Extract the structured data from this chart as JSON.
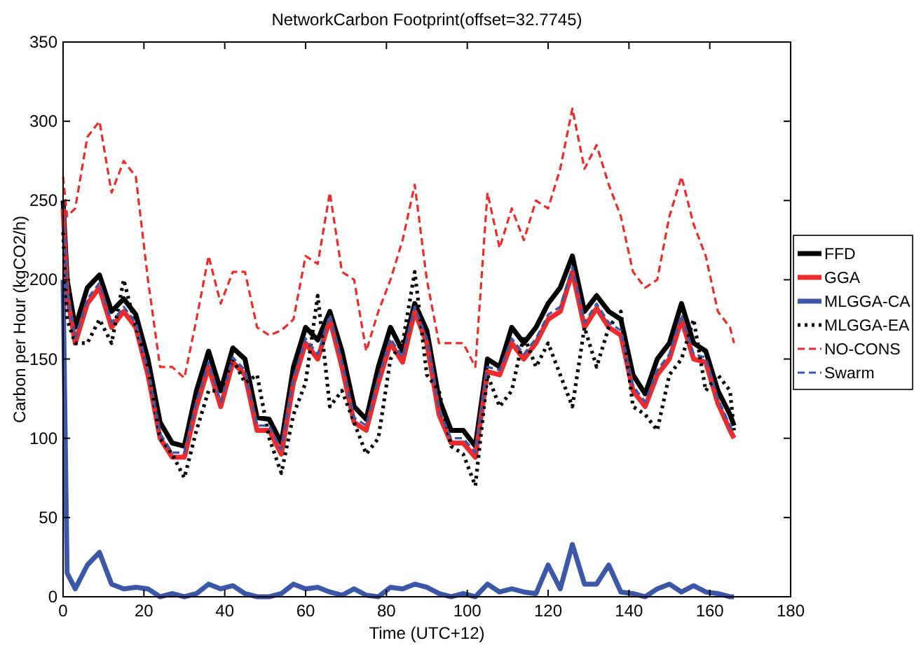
{
  "chart_data": {
    "type": "line",
    "title": "NetworkCarbon Footprint(offset=32.7745)",
    "xlabel": "Time (UTC+12)",
    "ylabel": "Carbon per Hour (kgCO2/h)",
    "x": [
      0,
      1,
      3,
      6,
      9,
      12,
      15,
      18,
      21,
      24,
      27,
      30,
      33,
      36,
      39,
      42,
      45,
      48,
      51,
      54,
      57,
      60,
      63,
      66,
      69,
      72,
      75,
      78,
      81,
      84,
      87,
      90,
      93,
      96,
      99,
      102,
      105,
      108,
      111,
      114,
      117,
      120,
      123,
      126,
      129,
      132,
      135,
      138,
      141,
      144,
      147,
      150,
      153,
      156,
      159,
      162,
      165,
      166
    ],
    "series": [
      {
        "name": "FFD",
        "color": "#000000",
        "line_style": "solid",
        "values": [
          250,
          200,
          170,
          195,
          203,
          180,
          188,
          178,
          150,
          110,
          97,
          95,
          130,
          155,
          130,
          157,
          150,
          113,
          112,
          97,
          145,
          170,
          162,
          180,
          155,
          120,
          112,
          145,
          170,
          155,
          185,
          168,
          125,
          105,
          105,
          95,
          150,
          145,
          170,
          160,
          170,
          185,
          195,
          215,
          180,
          190,
          180,
          175,
          140,
          128,
          150,
          160,
          185,
          160,
          155,
          130,
          115,
          108
        ]
      },
      {
        "name": "GGA",
        "color": "#ee2a2a",
        "line_style": "solid",
        "values": [
          245,
          190,
          160,
          185,
          195,
          170,
          180,
          170,
          140,
          100,
          88,
          88,
          120,
          145,
          120,
          148,
          140,
          105,
          105,
          90,
          135,
          160,
          150,
          175,
          145,
          110,
          105,
          135,
          160,
          148,
          180,
          160,
          115,
          97,
          97,
          88,
          142,
          140,
          160,
          150,
          160,
          175,
          180,
          205,
          170,
          182,
          170,
          165,
          130,
          120,
          140,
          150,
          175,
          150,
          148,
          122,
          105,
          100
        ]
      },
      {
        "name": "MLGGA-CA",
        "color": "#3a57a8",
        "line_style": "solid",
        "values": [
          200,
          15,
          5,
          20,
          28,
          8,
          5,
          6,
          5,
          0,
          2,
          0,
          2,
          8,
          5,
          7,
          2,
          0,
          0,
          2,
          8,
          5,
          6,
          3,
          1,
          5,
          1,
          0,
          6,
          5,
          8,
          6,
          2,
          0,
          2,
          0,
          8,
          3,
          5,
          3,
          2,
          20,
          5,
          33,
          8,
          8,
          20,
          3,
          2,
          0,
          5,
          8,
          3,
          7,
          3,
          2,
          0,
          0
        ]
      },
      {
        "name": "MLGGA-EA",
        "color": "#000000",
        "line_style": "dotted",
        "values": [
          230,
          175,
          160,
          160,
          175,
          160,
          200,
          170,
          145,
          100,
          90,
          75,
          105,
          130,
          130,
          150,
          135,
          140,
          100,
          78,
          115,
          135,
          190,
          120,
          130,
          110,
          90,
          100,
          150,
          160,
          205,
          140,
          130,
          95,
          90,
          70,
          140,
          120,
          130,
          165,
          145,
          160,
          140,
          120,
          170,
          145,
          170,
          180,
          120,
          115,
          105,
          140,
          150,
          175,
          130,
          140,
          130,
          105
        ]
      },
      {
        "name": "NO-CONS",
        "color": "#ee2a2a",
        "line_style": "dashed",
        "values": [
          265,
          240,
          245,
          290,
          300,
          255,
          275,
          265,
          200,
          145,
          145,
          138,
          175,
          215,
          185,
          205,
          205,
          170,
          165,
          168,
          175,
          215,
          210,
          255,
          205,
          200,
          155,
          180,
          200,
          225,
          260,
          200,
          160,
          160,
          160,
          145,
          255,
          220,
          245,
          225,
          250,
          245,
          270,
          308,
          270,
          285,
          260,
          240,
          205,
          195,
          200,
          240,
          265,
          235,
          215,
          180,
          170,
          160
        ]
      },
      {
        "name": "Swarm",
        "color": "#3a57a8",
        "line_style": "dashed",
        "values": [
          248,
          193,
          163,
          188,
          198,
          173,
          183,
          173,
          143,
          103,
          91,
          91,
          123,
          148,
          123,
          151,
          143,
          108,
          108,
          93,
          138,
          163,
          153,
          178,
          148,
          113,
          108,
          138,
          163,
          151,
          183,
          163,
          118,
          100,
          100,
          91,
          145,
          143,
          163,
          153,
          163,
          178,
          183,
          208,
          173,
          185,
          173,
          168,
          133,
          123,
          143,
          153,
          178,
          153,
          151,
          125,
          108,
          103
        ]
      }
    ],
    "xlim": [
      0,
      180
    ],
    "xticks": [
      0,
      20,
      40,
      60,
      80,
      100,
      120,
      140,
      160,
      180
    ],
    "ylim": [
      0,
      350
    ],
    "yticks": [
      0,
      50,
      100,
      150,
      200,
      250,
      300,
      350
    ],
    "legend": "right"
  }
}
